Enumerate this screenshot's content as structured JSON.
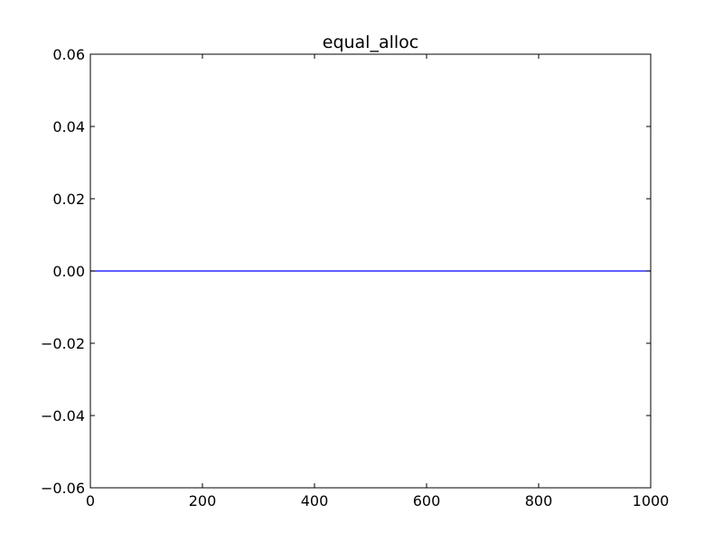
{
  "chart_data": {
    "type": "line",
    "title": "equal_alloc",
    "xlabel": "",
    "ylabel": "",
    "xlim": [
      0,
      1000
    ],
    "ylim": [
      -0.06,
      0.06
    ],
    "x_ticks": [
      0,
      200,
      400,
      600,
      800,
      1000
    ],
    "x_tick_labels": [
      "0",
      "200",
      "400",
      "600",
      "800",
      "1000"
    ],
    "y_ticks": [
      0.06,
      0.04,
      0.02,
      0.0,
      -0.02,
      -0.04,
      -0.06
    ],
    "y_tick_labels": [
      "0.06",
      "0.04",
      "0.02",
      "0.00",
      "−0.02",
      "−0.04",
      "−0.06"
    ],
    "grid": false,
    "series": [
      {
        "color": "#0000ff",
        "x": [
          0,
          1000
        ],
        "y": [
          0.0,
          0.0
        ]
      }
    ]
  }
}
